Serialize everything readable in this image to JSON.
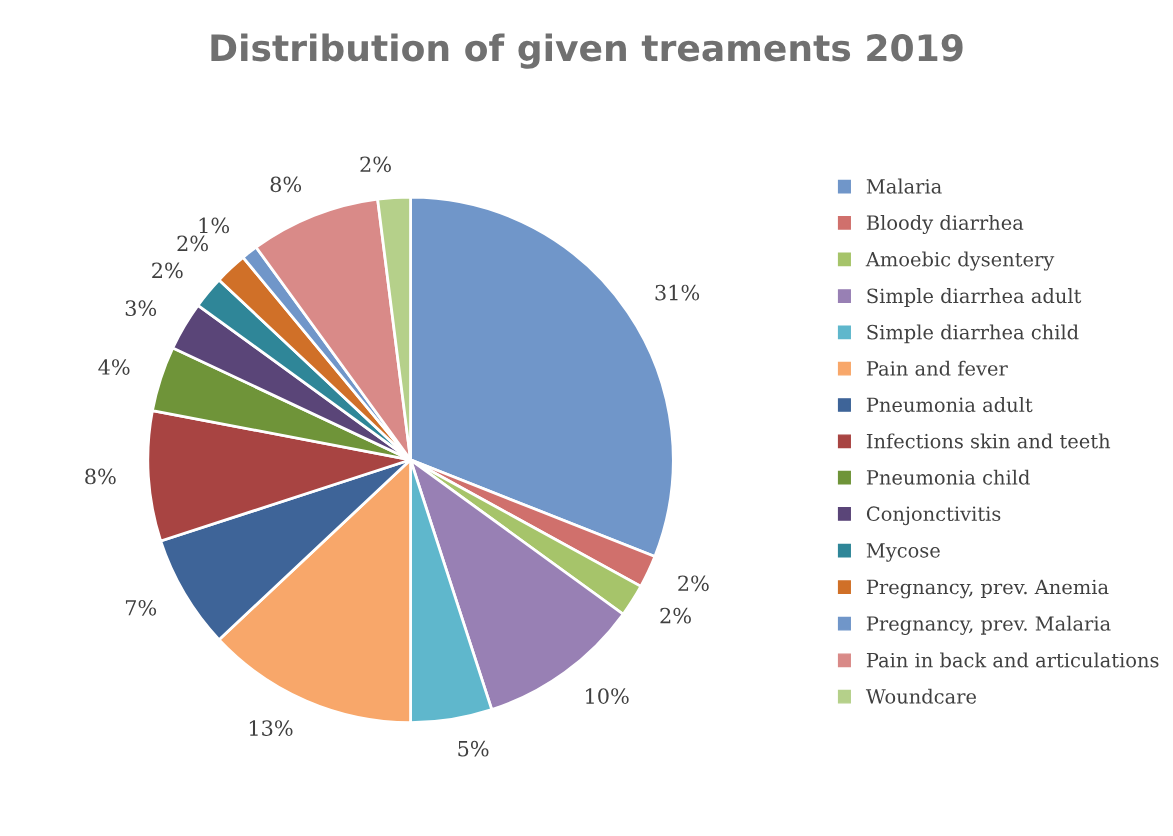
{
  "chart_data": {
    "type": "pie",
    "title": "Distribution of given treaments 2019",
    "categories": [
      "Malaria",
      "Bloody diarrhea",
      "Amoebic dysentery",
      "Simple diarrhea adult",
      "Simple diarrhea child",
      "Pain and fever",
      "Pneumonia adult",
      "Infections skin and teeth",
      "Pneumonia child",
      "Conjonctivitis",
      "Mycose",
      "Pregnancy, prev. Anemia",
      "Pregnancy, prev. Malaria",
      "Pain in back and articulations",
      "Woundcare"
    ],
    "values": [
      31,
      2,
      2,
      10,
      5,
      13,
      7,
      8,
      4,
      3,
      2,
      2,
      1,
      8,
      2
    ],
    "value_labels": [
      "31%",
      "2%",
      "2%",
      "10%",
      "5%",
      "13%",
      "7%",
      "8%",
      "4%",
      "3%",
      "2%",
      "2%",
      "1%",
      "8%",
      "2%"
    ],
    "colors": [
      "#7096c9",
      "#d0706c",
      "#a6c46a",
      "#9880b4",
      "#5fb7cc",
      "#f8a76a",
      "#3e6498",
      "#a84442",
      "#6f9439",
      "#5a4578",
      "#2f8698",
      "#d07028",
      "#7096c9",
      "#d98a88",
      "#b5d08a"
    ],
    "legend": "right"
  }
}
